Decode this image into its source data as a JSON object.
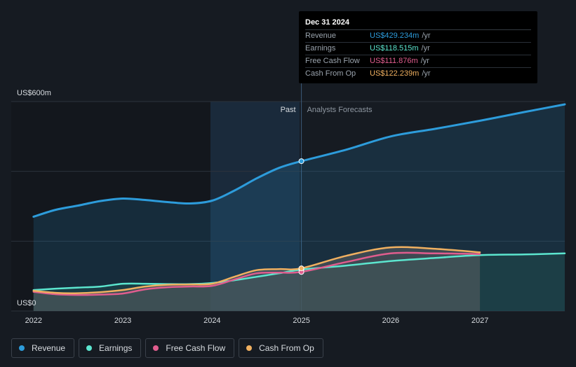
{
  "tooltip": {
    "date": "Dec 31 2024",
    "rows": [
      {
        "label": "Revenue",
        "value": "US$429.234m",
        "unit": "/yr",
        "color": "#2d9cdb"
      },
      {
        "label": "Earnings",
        "value": "US$118.515m",
        "unit": "/yr",
        "color": "#5ce6cf"
      },
      {
        "label": "Free Cash Flow",
        "value": "US$111.876m",
        "unit": "/yr",
        "color": "#e05d8e"
      },
      {
        "label": "Cash From Op",
        "value": "US$122.239m",
        "unit": "/yr",
        "color": "#f0b060"
      }
    ]
  },
  "legend": [
    {
      "label": "Revenue",
      "color": "#2d9cdb"
    },
    {
      "label": "Earnings",
      "color": "#5ce6cf"
    },
    {
      "label": "Free Cash Flow",
      "color": "#e05d8e"
    },
    {
      "label": "Cash From Op",
      "color": "#f0b060"
    }
  ],
  "chart_data": {
    "type": "line",
    "ylabel_top": "US$600m",
    "ylabel_bottom": "US$0",
    "ylim": [
      0,
      600
    ],
    "xlim": [
      2021.75,
      2027.95
    ],
    "x_ticks": [
      "2022",
      "2023",
      "2024",
      "2025",
      "2026",
      "2027"
    ],
    "divider_x": 2025.0,
    "past_label": "Past",
    "forecast_label": "Analysts Forecasts",
    "grid": true,
    "series": [
      {
        "name": "Revenue",
        "color": "#2d9cdb",
        "points": [
          [
            2022.0,
            270
          ],
          [
            2022.25,
            290
          ],
          [
            2022.5,
            302
          ],
          [
            2022.75,
            315
          ],
          [
            2023.0,
            322
          ],
          [
            2023.25,
            318
          ],
          [
            2023.5,
            312
          ],
          [
            2023.75,
            308
          ],
          [
            2024.0,
            316
          ],
          [
            2024.25,
            345
          ],
          [
            2024.5,
            380
          ],
          [
            2024.75,
            410
          ],
          [
            2025.0,
            429.234
          ],
          [
            2025.5,
            462
          ],
          [
            2026.0,
            500
          ],
          [
            2026.5,
            522
          ],
          [
            2027.0,
            545
          ],
          [
            2027.5,
            570
          ],
          [
            2027.95,
            592
          ]
        ]
      },
      {
        "name": "Earnings",
        "color": "#5ce6cf",
        "points": [
          [
            2022.0,
            60
          ],
          [
            2022.25,
            64
          ],
          [
            2022.5,
            67
          ],
          [
            2022.75,
            70
          ],
          [
            2023.0,
            78
          ],
          [
            2023.25,
            78
          ],
          [
            2023.5,
            77
          ],
          [
            2023.75,
            77
          ],
          [
            2024.0,
            80
          ],
          [
            2024.25,
            88
          ],
          [
            2024.5,
            98
          ],
          [
            2024.75,
            108
          ],
          [
            2025.0,
            118.515
          ],
          [
            2025.5,
            130
          ],
          [
            2026.0,
            143
          ],
          [
            2026.5,
            152
          ],
          [
            2027.0,
            160
          ],
          [
            2027.5,
            162
          ],
          [
            2027.95,
            165
          ]
        ]
      },
      {
        "name": "Free Cash Flow",
        "color": "#e05d8e",
        "points": [
          [
            2022.0,
            55
          ],
          [
            2022.25,
            48
          ],
          [
            2022.5,
            46
          ],
          [
            2022.75,
            47
          ],
          [
            2023.0,
            50
          ],
          [
            2023.25,
            62
          ],
          [
            2023.5,
            68
          ],
          [
            2023.75,
            70
          ],
          [
            2024.0,
            72
          ],
          [
            2024.25,
            90
          ],
          [
            2024.5,
            108
          ],
          [
            2024.75,
            110
          ],
          [
            2025.0,
            111.876
          ],
          [
            2025.5,
            140
          ],
          [
            2026.0,
            165
          ],
          [
            2026.5,
            165
          ],
          [
            2027.0,
            163
          ]
        ]
      },
      {
        "name": "Cash From Op",
        "color": "#f0b060",
        "points": [
          [
            2022.0,
            58
          ],
          [
            2022.25,
            52
          ],
          [
            2022.5,
            51
          ],
          [
            2022.75,
            54
          ],
          [
            2023.0,
            60
          ],
          [
            2023.25,
            70
          ],
          [
            2023.5,
            75
          ],
          [
            2023.75,
            76
          ],
          [
            2024.0,
            78
          ],
          [
            2024.25,
            98
          ],
          [
            2024.5,
            117
          ],
          [
            2024.75,
            120
          ],
          [
            2025.0,
            122.239
          ],
          [
            2025.5,
            158
          ],
          [
            2026.0,
            182
          ],
          [
            2026.5,
            178
          ],
          [
            2027.0,
            168
          ]
        ]
      }
    ]
  }
}
